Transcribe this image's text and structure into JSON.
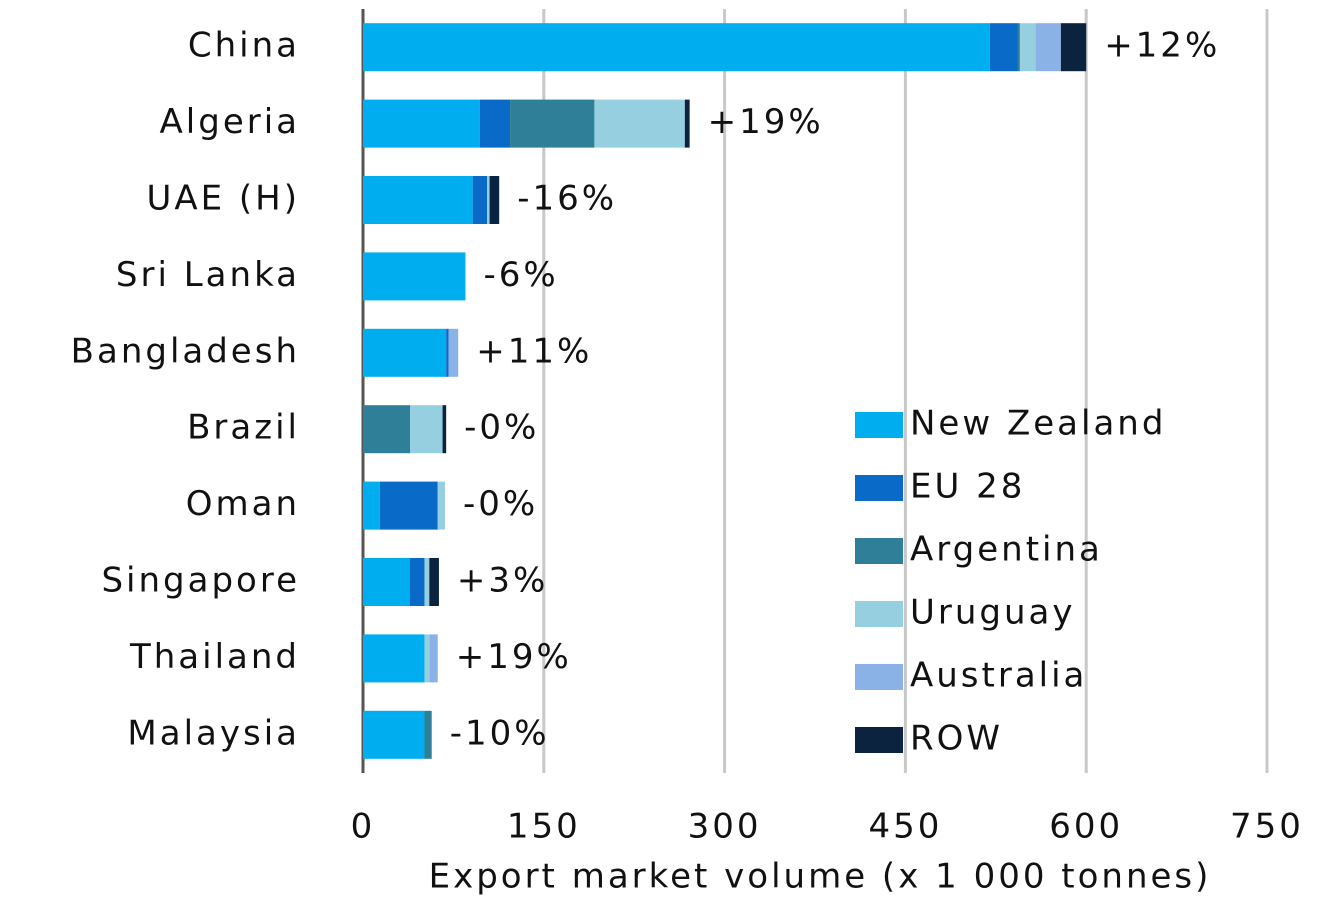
{
  "chart_data": {
    "type": "stacked_barh",
    "categories": [
      "China",
      "Algeria",
      "UAE (H)",
      "Sri Lanka",
      "Bangladesh",
      "Brazil",
      "Oman",
      "Singapore",
      "Thailand",
      "Malaysia"
    ],
    "series": [
      {
        "name": "New Zealand",
        "color": "#00adef",
        "values": [
          520,
          97,
          91,
          85,
          69,
          0,
          14,
          39,
          51,
          51
        ]
      },
      {
        "name": "EU 28",
        "color": "#0a6ac8",
        "values": [
          23,
          25,
          12,
          0,
          2,
          0,
          48,
          12,
          0,
          0
        ]
      },
      {
        "name": "Argentina",
        "color": "#2e7f97",
        "values": [
          2,
          70,
          0,
          0,
          0,
          39,
          0,
          0,
          0,
          6
        ]
      },
      {
        "name": "Uruguay",
        "color": "#96cfe0",
        "values": [
          13,
          75,
          2,
          0,
          0,
          27,
          6,
          4,
          4,
          0
        ]
      },
      {
        "name": "Australia",
        "color": "#8ab2e6",
        "values": [
          21,
          0,
          0,
          0,
          8,
          0,
          0,
          0,
          7,
          0
        ]
      },
      {
        "name": "ROW",
        "color": "#0c2340",
        "values": [
          21,
          4,
          8,
          0,
          0,
          3,
          0,
          8,
          0,
          0
        ]
      }
    ],
    "annotations": [
      "+12%",
      "+19%",
      "-16%",
      "-6%",
      "+11%",
      "-0%",
      "-0%",
      "+3%",
      "+19%",
      "-10%"
    ],
    "annotation_colors": [
      "#1fa84f",
      "#1fa84f",
      "#ee1c24",
      "#ee1c24",
      "#1fa84f",
      "#ee1c24",
      "#ee1c24",
      "#1fa84f",
      "#1fa84f",
      "#ee1c24"
    ],
    "xlabel": "Export market volume (x 1 000 tonnes)",
    "xlim": [
      0,
      750
    ],
    "xticks": [
      0,
      150,
      300,
      450,
      600,
      750
    ],
    "grid": true
  }
}
